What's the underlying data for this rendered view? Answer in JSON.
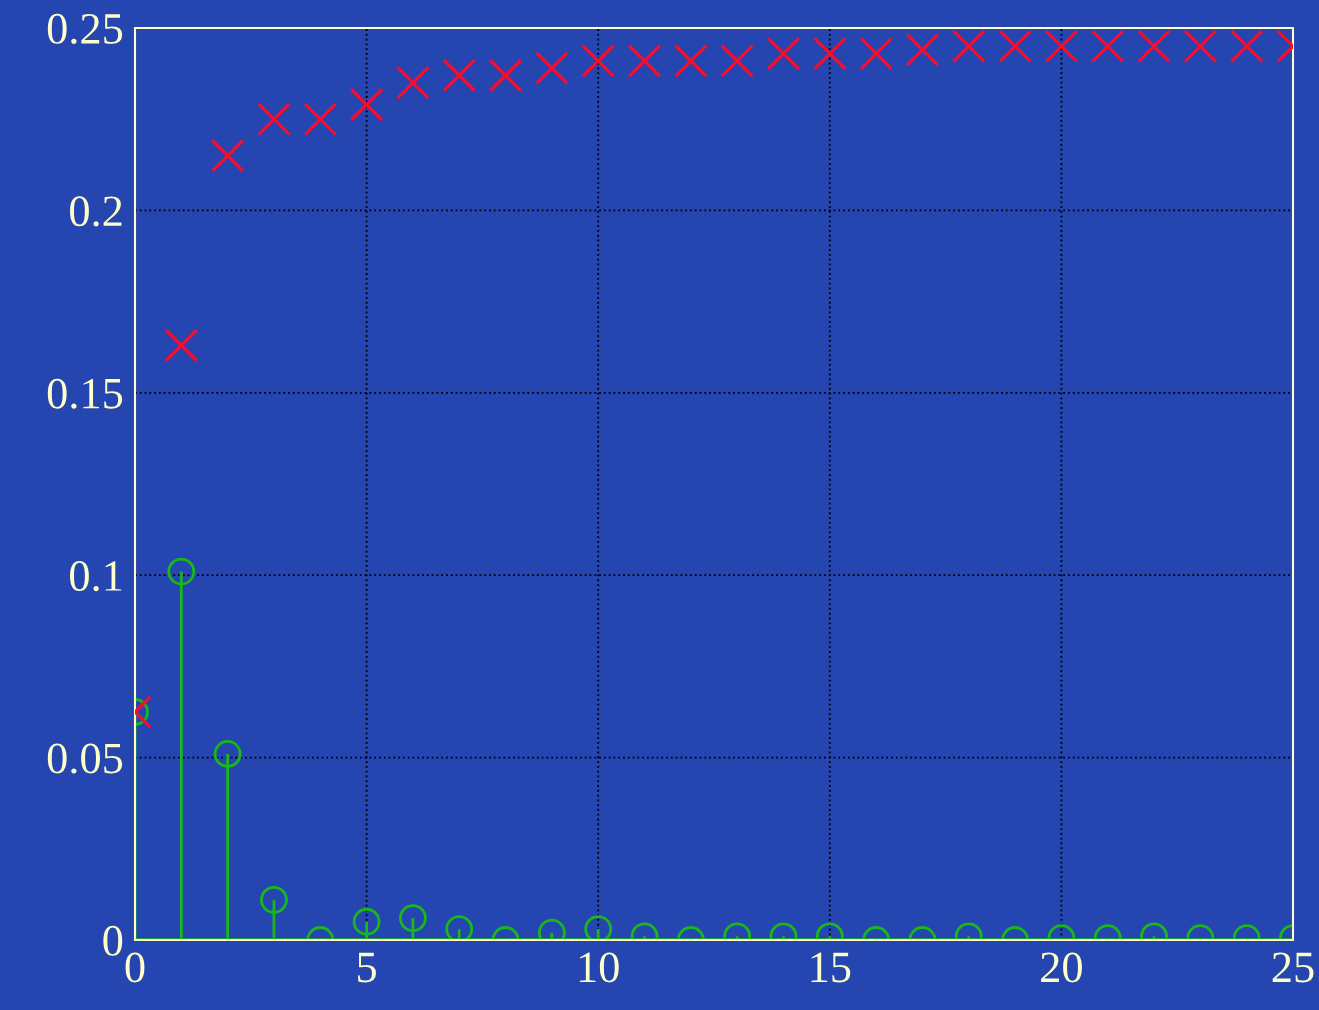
{
  "chart_data": {
    "type": "scatter",
    "x": [
      0,
      1,
      2,
      3,
      4,
      5,
      6,
      7,
      8,
      9,
      10,
      11,
      12,
      13,
      14,
      15,
      16,
      17,
      18,
      19,
      20,
      21,
      22,
      23,
      24,
      25
    ],
    "series": [
      {
        "color": "#ff0a2a",
        "marker": "cross",
        "values": [
          0.0625,
          0.163,
          0.215,
          0.225,
          0.225,
          0.229,
          0.235,
          0.237,
          0.237,
          0.239,
          0.241,
          0.241,
          0.241,
          0.241,
          0.243,
          0.243,
          0.243,
          0.244,
          0.245,
          0.245,
          0.245,
          0.245,
          0.245,
          0.245,
          0.245,
          0.245
        ]
      },
      {
        "type": "lollipop",
        "color": "#18b818",
        "marker": "circle",
        "values": [
          0.0625,
          0.101,
          0.051,
          0.011,
          0.0,
          0.005,
          0.006,
          0.003,
          0.0,
          0.002,
          0.003,
          0.001,
          0.0,
          0.001,
          0.001,
          0.001,
          0.0,
          0.0,
          0.001,
          0.0,
          0.0005,
          0.0005,
          0.001,
          0.0005,
          0.0005,
          0.0005
        ]
      }
    ],
    "xlim": [
      0,
      25
    ],
    "xticks": [
      0,
      5,
      10,
      15,
      20,
      25
    ],
    "ylim": [
      0,
      0.25
    ],
    "yticks": [
      0,
      0.05,
      0.1,
      0.15,
      0.2,
      0.25
    ],
    "grid": true,
    "line_style": "dotted"
  }
}
